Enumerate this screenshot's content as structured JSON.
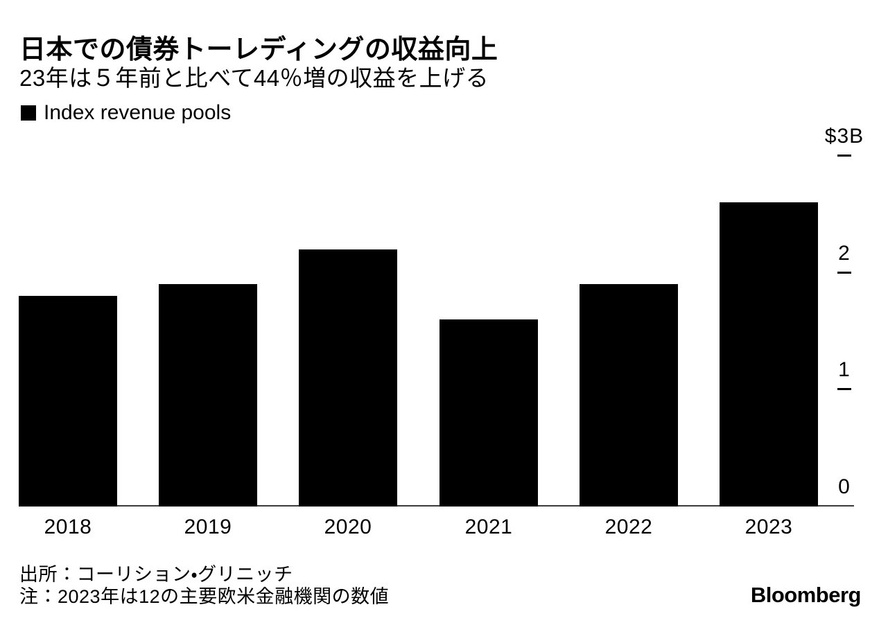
{
  "header": {
    "title": "日本での債券トーレディングの収益向上",
    "subtitle": "23年は５年前と比べて44％増の収益を上げる"
  },
  "legend": {
    "label": "Index revenue pools",
    "swatch_color": "#000000"
  },
  "chart_data": {
    "type": "bar",
    "title": "日本での債券トーレディングの収益向上",
    "subtitle": "23年は５年前と比べて44％増の収益を上げる",
    "series_name": "Index revenue pools",
    "categories": [
      "2018",
      "2019",
      "2020",
      "2021",
      "2022",
      "2023"
    ],
    "values": [
      1.8,
      1.9,
      2.2,
      1.6,
      1.9,
      2.6
    ],
    "unit": "$B",
    "ylim": [
      0,
      3
    ],
    "yticks": [
      {
        "value": 3,
        "label": "$3B"
      },
      {
        "value": 2,
        "label": "2"
      },
      {
        "value": 1,
        "label": "1"
      },
      {
        "value": 0,
        "label": "0"
      }
    ],
    "axis_position": "right",
    "grid": false,
    "bar_color": "#000000"
  },
  "footer": {
    "source": "出所：コーリション・グリニッチ",
    "note": "注：2023年は12の主要欧米金融機関の数値",
    "brand": "Bloomberg"
  }
}
